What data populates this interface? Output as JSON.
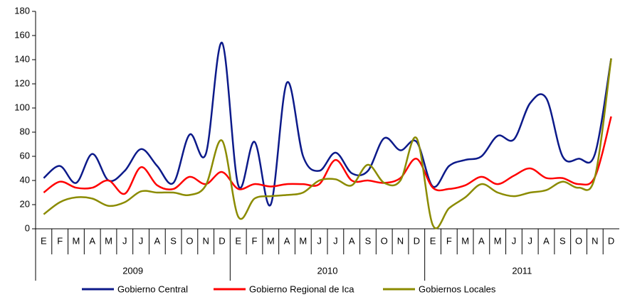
{
  "chart_data": {
    "type": "line",
    "categories": [
      "E",
      "F",
      "M",
      "A",
      "M",
      "J",
      "J",
      "A",
      "S",
      "O",
      "N",
      "D",
      "E",
      "F",
      "M",
      "A",
      "M",
      "J",
      "J",
      "A",
      "S",
      "O",
      "N",
      "D",
      "E",
      "F",
      "M",
      "A",
      "M",
      "J",
      "J",
      "A",
      "S",
      "O",
      "N",
      "D"
    ],
    "year_groups": [
      "2009",
      "2010",
      "2011"
    ],
    "series": [
      {
        "name": "Gobierno Central",
        "color": "#0c1a8a",
        "values": [
          42,
          52,
          38,
          62,
          40,
          48,
          66,
          52,
          38,
          78,
          62,
          154,
          36,
          72,
          20,
          121,
          60,
          48,
          63,
          46,
          48,
          75,
          65,
          72,
          35,
          52,
          57,
          60,
          77,
          74,
          104,
          108,
          60,
          58,
          62,
          141
        ]
      },
      {
        "name": "Gobierno Regional de Ica",
        "color": "#ff0000",
        "values": [
          30,
          39,
          34,
          34,
          40,
          29,
          51,
          36,
          33,
          43,
          37,
          47,
          33,
          37,
          35,
          37,
          37,
          37,
          57,
          40,
          40,
          38,
          42,
          58,
          34,
          33,
          36,
          43,
          37,
          44,
          50,
          42,
          42,
          37,
          43,
          93
        ]
      },
      {
        "name": "Gobiernos Locales",
        "color": "#8b8b00",
        "values": [
          12,
          22,
          26,
          25,
          19,
          22,
          31,
          30,
          30,
          28,
          36,
          73,
          10,
          25,
          27,
          28,
          30,
          40,
          41,
          36,
          53,
          38,
          40,
          75,
          3,
          17,
          26,
          37,
          30,
          27,
          30,
          32,
          39,
          34,
          43,
          141
        ]
      }
    ],
    "ylim": [
      0,
      180
    ],
    "yticks": [
      0,
      20,
      40,
      60,
      80,
      100,
      120,
      140,
      160,
      180
    ],
    "grid": false,
    "legend": "bottom"
  }
}
